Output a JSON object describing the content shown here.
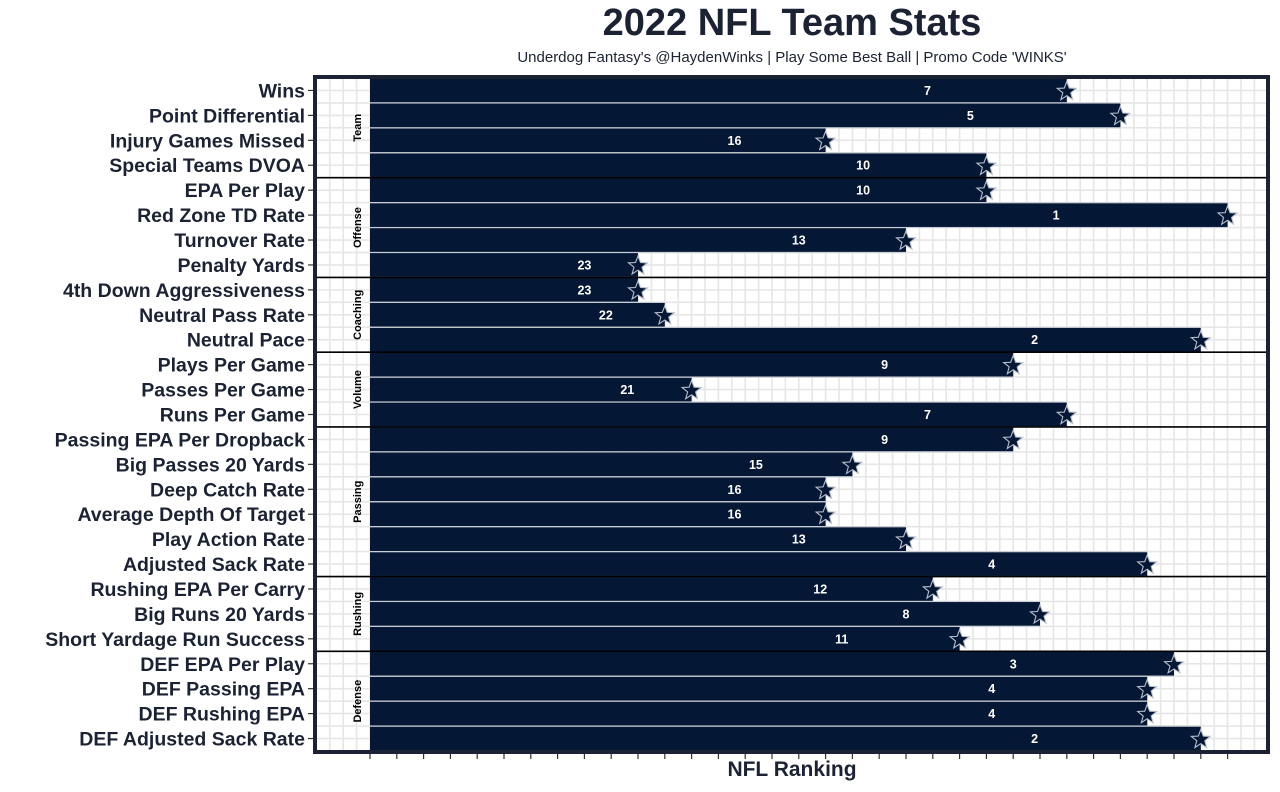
{
  "chart_data": {
    "type": "bar",
    "orientation": "horizontal",
    "title": "2022 NFL Team Stats",
    "subtitle": "Underdog Fantasy's @HaydenWinks | Play Some Best Ball | Promo Code 'WINKS'",
    "xlabel": "NFL Ranking",
    "ylabel": "",
    "x_axis": {
      "reversed": true,
      "range": [
        32,
        1
      ],
      "tick_labels_shown": false
    },
    "bar_color": "#041836",
    "marker": "star",
    "grid": true,
    "groups": [
      {
        "name": "Team",
        "stats": [
          {
            "label": "Wins",
            "rank": 7
          },
          {
            "label": "Point Differential",
            "rank": 5
          },
          {
            "label": "Injury Games Missed",
            "rank": 16
          },
          {
            "label": "Special Teams DVOA",
            "rank": 10
          }
        ]
      },
      {
        "name": "Offense",
        "stats": [
          {
            "label": "EPA Per Play",
            "rank": 10
          },
          {
            "label": "Red Zone TD Rate",
            "rank": 1
          },
          {
            "label": "Turnover Rate",
            "rank": 13
          },
          {
            "label": "Penalty Yards",
            "rank": 23
          }
        ]
      },
      {
        "name": "Coaching",
        "stats": [
          {
            "label": "4th Down Aggressiveness",
            "rank": 23
          },
          {
            "label": "Neutral Pass Rate",
            "rank": 22
          },
          {
            "label": "Neutral Pace",
            "rank": 2
          }
        ]
      },
      {
        "name": "Volume",
        "stats": [
          {
            "label": "Plays Per Game",
            "rank": 9
          },
          {
            "label": "Passes Per Game",
            "rank": 21
          },
          {
            "label": "Runs Per Game",
            "rank": 7
          }
        ]
      },
      {
        "name": "Passing",
        "stats": [
          {
            "label": "Passing EPA Per Dropback",
            "rank": 9
          },
          {
            "label": "Big Passes 20 Yards",
            "rank": 15
          },
          {
            "label": "Deep Catch Rate",
            "rank": 16
          },
          {
            "label": "Average Depth Of Target",
            "rank": 16
          },
          {
            "label": "Play Action Rate",
            "rank": 13
          },
          {
            "label": "Adjusted Sack Rate",
            "rank": 4
          }
        ]
      },
      {
        "name": "Rushing",
        "stats": [
          {
            "label": "Rushing EPA Per Carry",
            "rank": 12
          },
          {
            "label": "Big Runs 20 Yards",
            "rank": 8
          },
          {
            "label": "Short Yardage Run Success",
            "rank": 11
          }
        ]
      },
      {
        "name": "Defense",
        "stats": [
          {
            "label": "DEF EPA Per Play",
            "rank": 3
          },
          {
            "label": "DEF Passing EPA",
            "rank": 4
          },
          {
            "label": "DEF Rushing EPA",
            "rank": 4
          },
          {
            "label": "DEF Adjusted Sack Rate",
            "rank": 2
          }
        ]
      }
    ]
  }
}
